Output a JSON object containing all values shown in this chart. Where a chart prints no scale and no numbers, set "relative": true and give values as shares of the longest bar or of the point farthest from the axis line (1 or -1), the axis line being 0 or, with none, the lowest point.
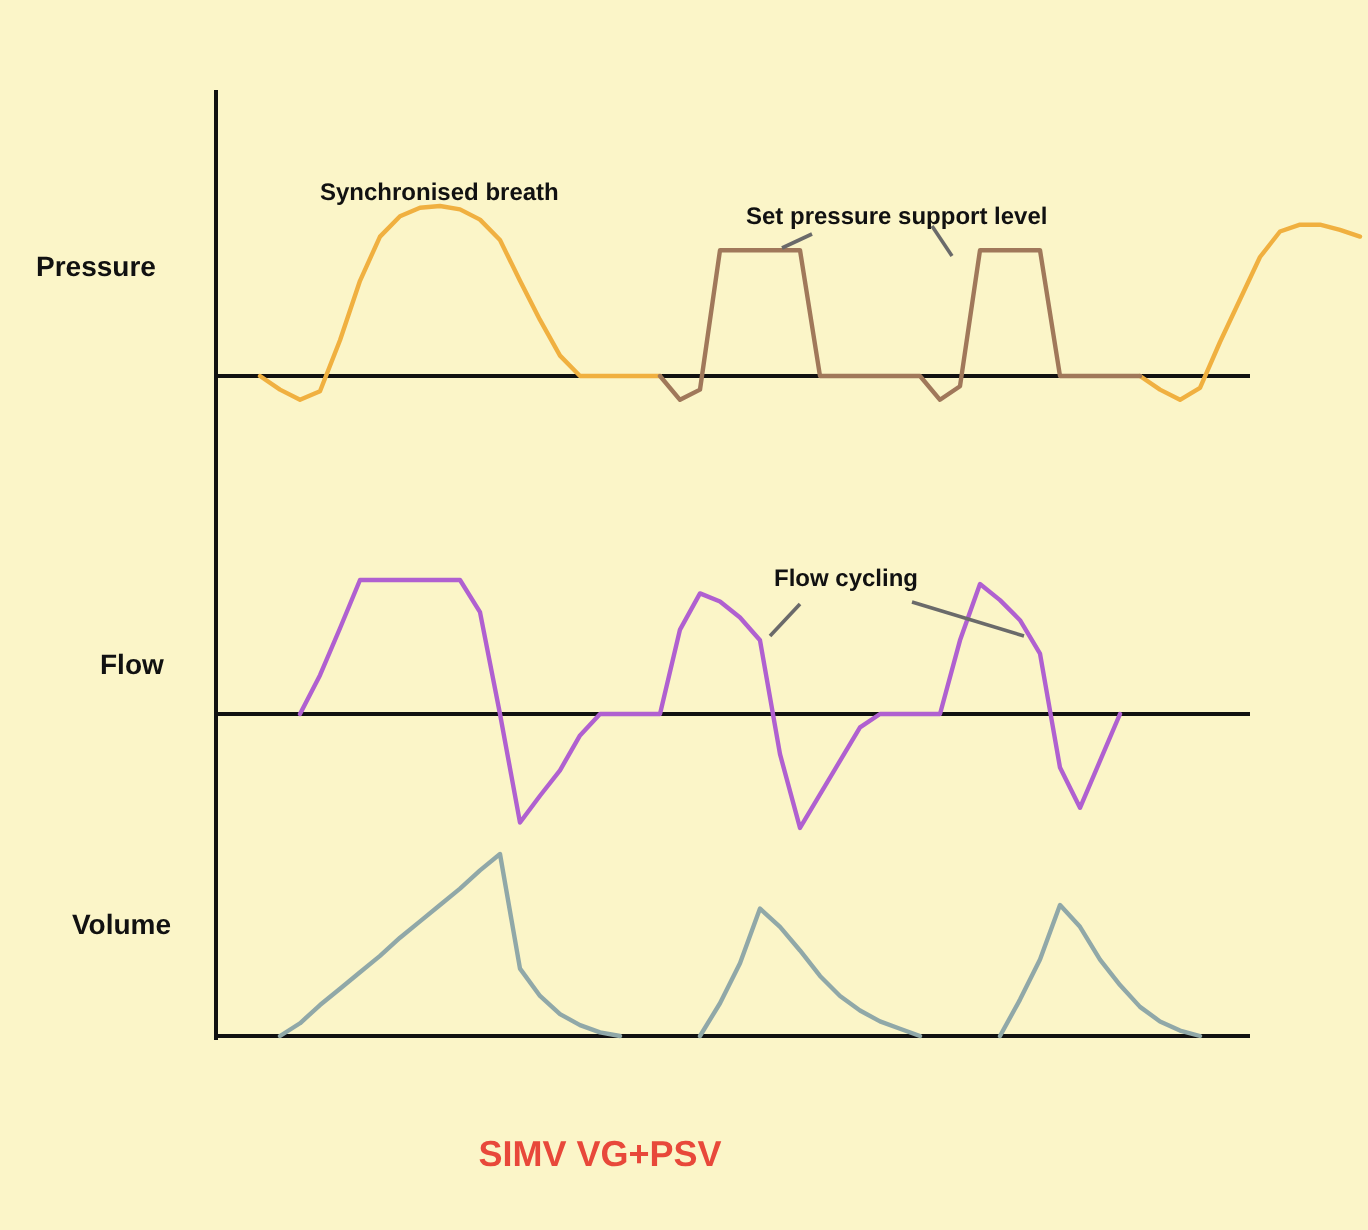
{
  "chart_data": [
    {
      "type": "line",
      "ylabel": "Pressure",
      "relative": true,
      "annotations": [
        "Synchronised breath",
        "Set pressure support level"
      ],
      "categories": [
        null,
        null,
        null,
        null,
        null,
        null,
        null,
        null,
        null,
        null,
        null,
        null,
        null,
        null,
        null,
        null,
        null,
        null,
        null,
        null,
        null,
        null,
        null,
        null,
        null,
        null,
        null,
        null,
        null,
        null,
        null,
        null,
        null,
        null,
        null,
        null,
        null,
        null,
        null,
        null,
        null,
        null,
        null,
        null,
        null,
        null,
        null,
        null,
        null,
        null,
        null,
        null,
        null,
        null,
        null,
        null,
        null,
        null
      ],
      "series": [
        {
          "color": "#f0b040",
          "values": [
            null,
            null,
            0,
            -0.08,
            -0.14,
            -0.09,
            0.21,
            0.56,
            0.82,
            0.94,
            0.99,
            1,
            0.98,
            0.92,
            0.8,
            0.56,
            0.33,
            0.12,
            0,
            0,
            0,
            0,
            0,
            null,
            null,
            null,
            null,
            null,
            null,
            null,
            null,
            null,
            null,
            null,
            null,
            null,
            null,
            null,
            null,
            null,
            null,
            null,
            null,
            null,
            null,
            null,
            0,
            -0.08,
            -0.14,
            -0.07,
            0.2,
            0.45,
            0.7,
            0.85,
            0.89,
            0.89,
            0.86,
            0.82
          ]
        },
        {
          "color": "#a0785a",
          "values": [
            null,
            null,
            null,
            null,
            null,
            null,
            null,
            null,
            null,
            null,
            null,
            null,
            null,
            null,
            null,
            null,
            null,
            null,
            null,
            null,
            null,
            null,
            0,
            -0.14,
            -0.08,
            0.74,
            0.74,
            0.74,
            0.74,
            0.74,
            0,
            0,
            0,
            0,
            0,
            0,
            -0.14,
            -0.06,
            0.74,
            0.74,
            0.74,
            0.74,
            0,
            0,
            0,
            0,
            0,
            null,
            null,
            null,
            null,
            null,
            null,
            null,
            null,
            null,
            null,
            null
          ]
        }
      ]
    },
    {
      "type": "line",
      "ylabel": "Flow",
      "relative": true,
      "annotations": [
        "Flow cycling"
      ],
      "categories": [
        null,
        null,
        null,
        null,
        null,
        null,
        null,
        null,
        null,
        null,
        null,
        null,
        null,
        null,
        null,
        null,
        null,
        null,
        null,
        null,
        null,
        null,
        null,
        null,
        null,
        null,
        null,
        null,
        null,
        null,
        null,
        null,
        null,
        null,
        null,
        null,
        null,
        null,
        null,
        null,
        null,
        null,
        null,
        null,
        null,
        null,
        null,
        null,
        null,
        null,
        null,
        null,
        null,
        null,
        null,
        null,
        null,
        null
      ],
      "series": [
        {
          "color": "#b060d0",
          "values": [
            null,
            null,
            null,
            null,
            0,
            0.29,
            0.64,
            1,
            1,
            1,
            1,
            1,
            1,
            0.76,
            0,
            -0.81,
            -0.61,
            -0.42,
            -0.16,
            0,
            0,
            0,
            0,
            0.63,
            0.9,
            0.84,
            0.72,
            0.55,
            -0.3,
            -0.85,
            -0.6,
            -0.35,
            -0.1,
            0,
            0,
            0,
            0,
            0.55,
            0.97,
            0.85,
            0.7,
            0.45,
            -0.4,
            -0.7,
            -0.35,
            0,
            null,
            null,
            null,
            null,
            null,
            null,
            null,
            null,
            null,
            null,
            null,
            null
          ]
        }
      ]
    },
    {
      "type": "line",
      "ylabel": "Volume",
      "relative": true,
      "annotations": [
        "SIMV VG+PSV"
      ],
      "categories": [
        null,
        null,
        null,
        null,
        null,
        null,
        null,
        null,
        null,
        null,
        null,
        null,
        null,
        null,
        null,
        null,
        null,
        null,
        null,
        null,
        null,
        null,
        null,
        null,
        null,
        null,
        null,
        null,
        null,
        null,
        null,
        null,
        null,
        null,
        null,
        null,
        null,
        null,
        null,
        null,
        null,
        null,
        null,
        null,
        null,
        null,
        null,
        null,
        null,
        null,
        null,
        null,
        null,
        null,
        null,
        null,
        null,
        null
      ],
      "series": [
        {
          "color": "#90a8a8",
          "values": [
            null,
            null,
            null,
            0,
            0.07,
            0.17,
            0.26,
            0.35,
            0.44,
            0.54,
            0.63,
            0.72,
            0.81,
            0.91,
            1,
            0.37,
            0.22,
            0.12,
            0.06,
            0.02,
            0,
            null,
            null,
            null,
            0,
            0.18,
            0.4,
            0.7,
            0.6,
            0.47,
            0.33,
            0.22,
            0.14,
            0.08,
            0.04,
            0,
            null,
            null,
            null,
            0,
            0.2,
            0.42,
            0.72,
            0.6,
            0.42,
            0.28,
            0.16,
            0.08,
            0.03,
            0,
            null,
            null,
            null,
            null,
            null,
            null,
            null,
            null
          ]
        }
      ]
    }
  ]
}
